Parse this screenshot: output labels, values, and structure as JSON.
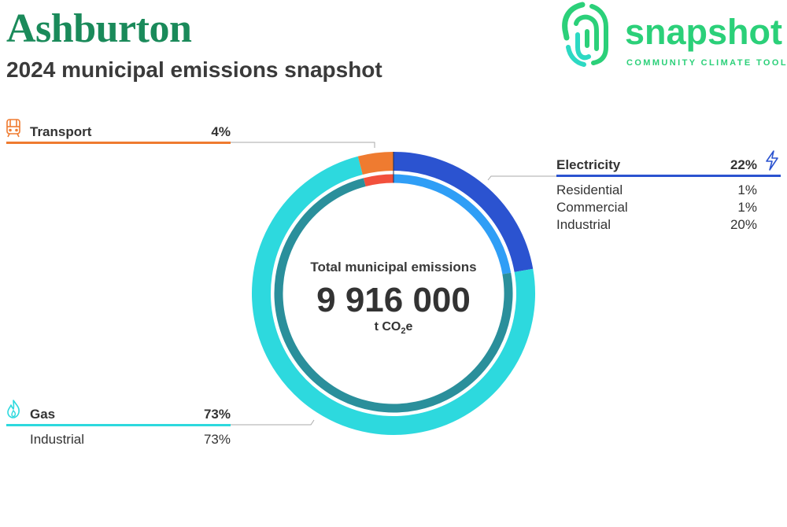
{
  "header": {
    "title": "Ashburton",
    "subtitle": "2024 municipal emissions snapshot"
  },
  "logo": {
    "word": "snapshot",
    "tagline": "COMMUNITY CLIMATE TOOL",
    "icon": "fingerprint-icon",
    "color": "#2bd079"
  },
  "center": {
    "label": "Total municipal emissions",
    "value": "9 916 000",
    "unit_prefix": "t CO",
    "unit_sub": "2",
    "unit_suffix": "e"
  },
  "chart_data": {
    "type": "pie",
    "style": "donut",
    "title": "Total municipal emissions",
    "total": 9916000,
    "unit": "t CO2e",
    "sectors": [
      {
        "name": "Electricity",
        "percent": "22%",
        "value": 22,
        "color": "#2b53d0",
        "inner_color": "#2f9ef6",
        "icon": "lightning-icon",
        "breakdown": [
          {
            "name": "Residential",
            "percent": "1%",
            "value": 1
          },
          {
            "name": "Commercial",
            "percent": "1%",
            "value": 1
          },
          {
            "name": "Industrial",
            "percent": "20%",
            "value": 20
          }
        ]
      },
      {
        "name": "Gas",
        "percent": "73%",
        "value": 73,
        "color": "#2dd9de",
        "inner_color": "#2a8f9b",
        "icon": "flame-icon",
        "breakdown": [
          {
            "name": "Industrial",
            "percent": "73%",
            "value": 73
          }
        ]
      },
      {
        "name": "Transport",
        "percent": "4%",
        "value": 4,
        "color": "#ef7b30",
        "inner_color": "#f2503c",
        "icon": "train-icon",
        "breakdown": []
      }
    ]
  }
}
